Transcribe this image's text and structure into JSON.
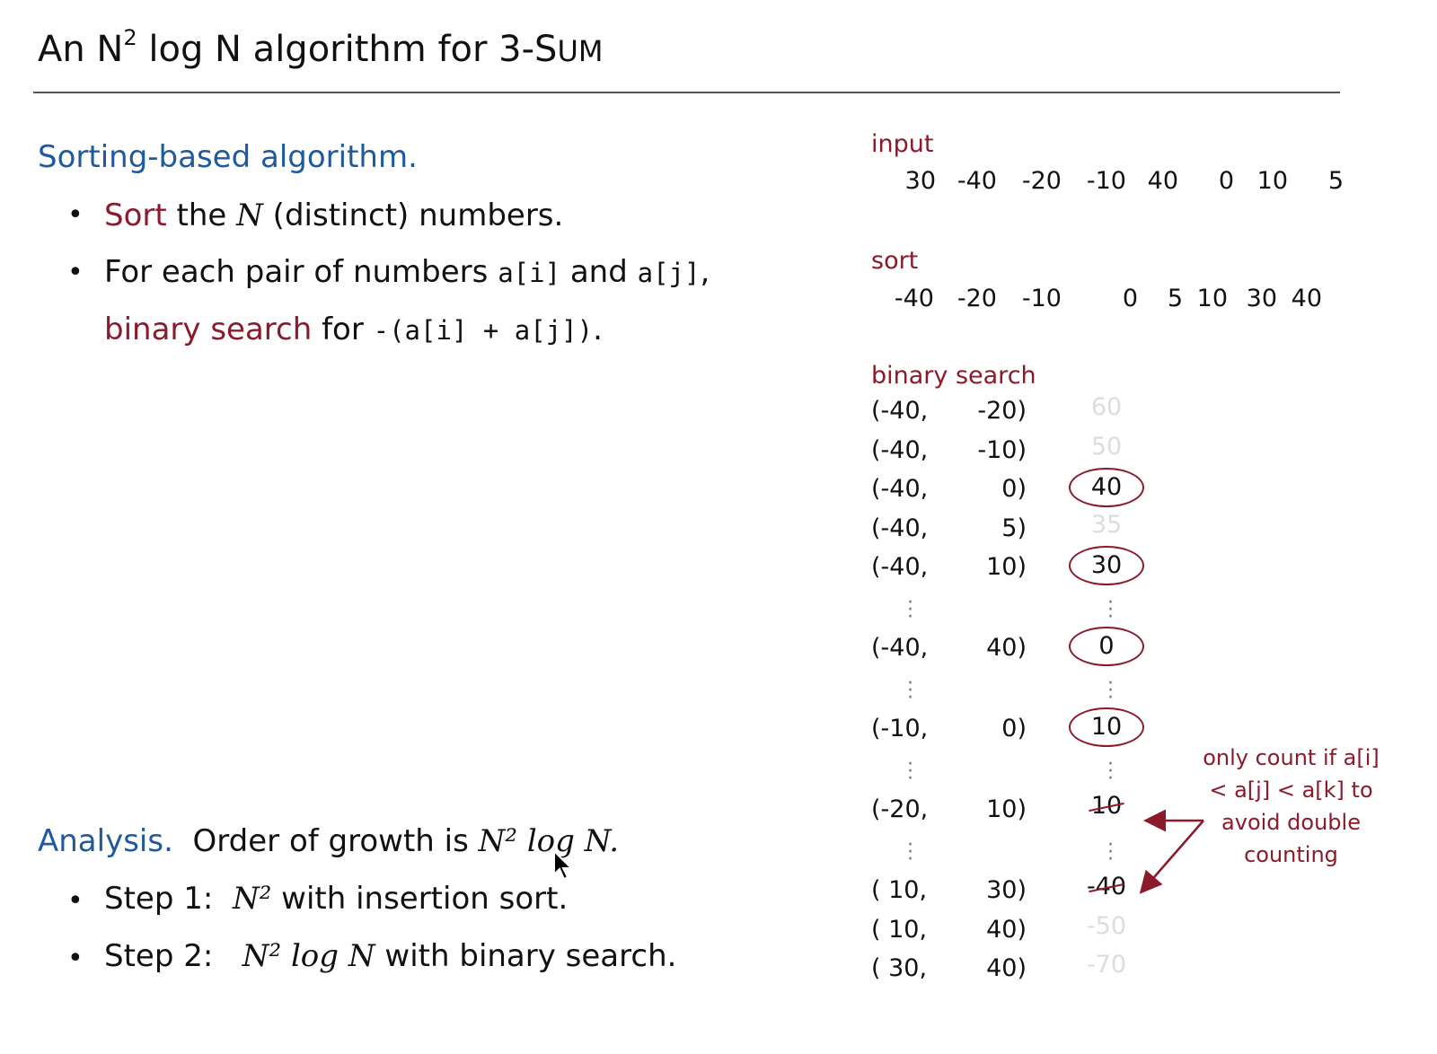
{
  "title": {
    "prefix": "An N",
    "sup": "2",
    "mid": " log N algorithm for 3-S",
    "sc": "UM"
  },
  "left": {
    "heading": "Sorting-based algorithm.",
    "bullets": [
      {
        "red": "Sort",
        "text1": " the ",
        "italic": "N",
        "text2": " (distinct) numbers."
      },
      {
        "text": "For each pair of numbers ",
        "code1": "a[i]",
        "and": " and ",
        "code2": "a[j]",
        "comma": ","
      },
      {
        "red": "binary search",
        "text": " for ",
        "code": "-(a[i] + a[j])",
        "end": "."
      }
    ],
    "analysis_heading": "Analysis.",
    "analysis_text": "Order of growth is ",
    "analysis_math": "N² log N.",
    "steps": [
      {
        "label": "Step 1:",
        "math": "N²",
        "text": " with insertion sort."
      },
      {
        "label": "Step 2:",
        "math": "N² log N",
        "text": " with binary search."
      }
    ]
  },
  "right": {
    "input_label": "input",
    "input": [
      "30",
      "-40",
      "-20",
      "-10",
      "40",
      "0",
      "10",
      "5"
    ],
    "sort_label": "sort",
    "sorted": [
      "-40",
      "-20",
      "-10",
      "0",
      "5",
      "10",
      "30",
      "40"
    ],
    "search_label": "binary search",
    "rows": [
      {
        "a": "(-40,",
        "b": "-20)",
        "r": "60",
        "style": "faint"
      },
      {
        "a": "(-40,",
        "b": "-10)",
        "r": "50",
        "style": "faint"
      },
      {
        "a": "(-40,",
        "b": "0)",
        "r": "40",
        "style": "circle"
      },
      {
        "a": "(-40,",
        "b": "5)",
        "r": "35",
        "style": "faint"
      },
      {
        "a": "(-40,",
        "b": "10)",
        "r": "30",
        "style": "circle"
      },
      {
        "dots": true
      },
      {
        "a": "(-40,",
        "b": "40)",
        "r": "0",
        "style": "circle"
      },
      {
        "dots": true
      },
      {
        "a": "(-10,",
        "b": "0)",
        "r": "10",
        "style": "circle"
      },
      {
        "dots": true
      },
      {
        "a": "(-20,",
        "b": "10)",
        "r": "10",
        "style": "strike"
      },
      {
        "dots": true
      },
      {
        "a": "( 10,",
        "b": "30)",
        "r": "-40",
        "style": "strike"
      },
      {
        "a": "( 10,",
        "b": "40)",
        "r": "-50",
        "style": "faint"
      },
      {
        "a": "( 30,",
        "b": "40)",
        "r": "-70",
        "style": "faint"
      }
    ],
    "note": "only count if a[i] < a[j] < a[k] to avoid double counting"
  },
  "colors": {
    "accent_red": "#8b1a2b",
    "heading_blue": "#1f5a9e"
  }
}
